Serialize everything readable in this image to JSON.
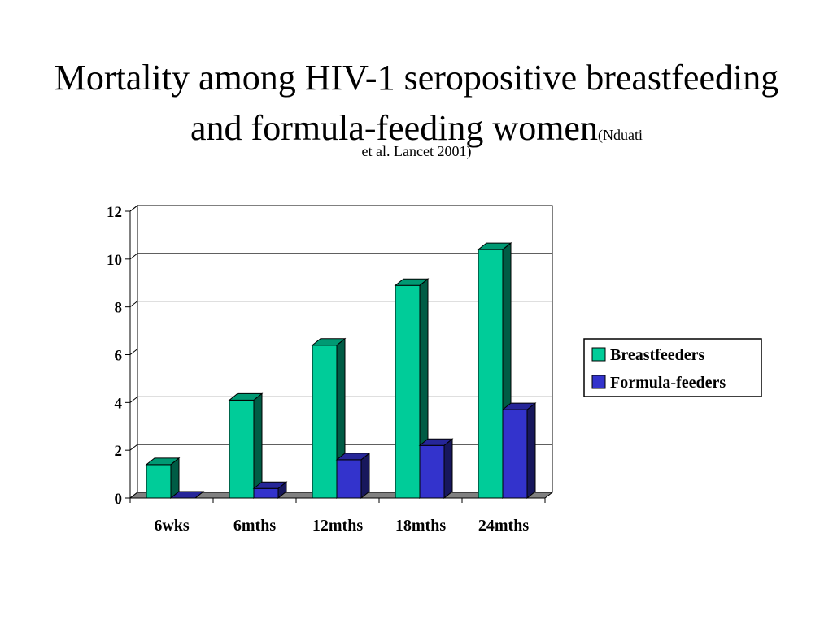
{
  "slide": {
    "title_main": "Mortality among HIV-1 seropositive breastfeeding and formula-feeding women",
    "title_cite_a": "(Nduati",
    "title_cite_b": "et al. Lancet 2001)"
  },
  "colors": {
    "breastfeeders": "#00cc99",
    "formula_feeders": "#3333cc",
    "floor": "#808080"
  },
  "chart_data": {
    "type": "bar",
    "style": "3d-clustered-column",
    "categories": [
      "6wks",
      "6mths",
      "12mths",
      "18mths",
      "24mths"
    ],
    "series": [
      {
        "name": "Breastfeeders",
        "values": [
          1.4,
          4.1,
          6.4,
          8.9,
          10.4
        ]
      },
      {
        "name": "Formula-feeders",
        "values": [
          0.0,
          0.4,
          1.6,
          2.2,
          3.7
        ]
      }
    ],
    "ylim": [
      0,
      12
    ],
    "yticks": [
      0,
      2,
      4,
      6,
      8,
      10,
      12
    ],
    "grid": true,
    "legend_position": "right"
  }
}
